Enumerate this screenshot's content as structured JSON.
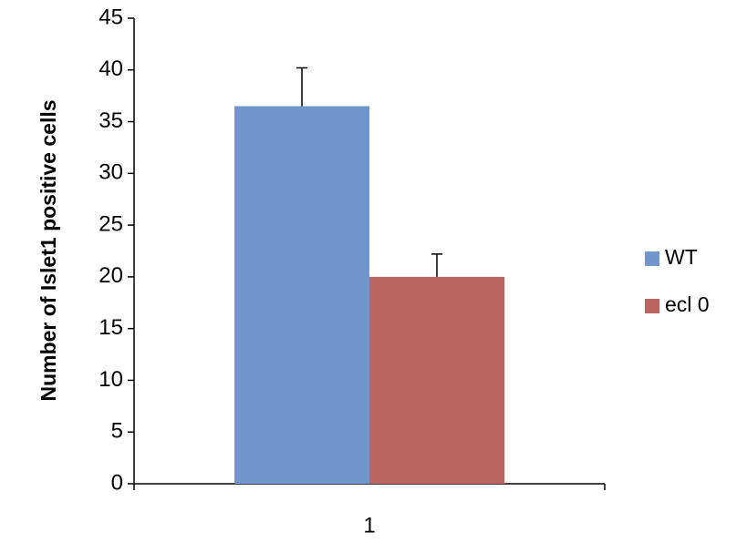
{
  "chart_data": {
    "type": "bar",
    "y_label": "Number of Islet1 positive cells",
    "categories": [
      "1"
    ],
    "series": [
      {
        "name": "WT",
        "color": "#7096cc",
        "values": [
          36.5
        ],
        "errors": [
          3.7
        ]
      },
      {
        "name": "ecl 0",
        "color": "#bb6460",
        "values": [
          20
        ],
        "errors": [
          2.2
        ]
      }
    ],
    "ylim": [
      0,
      45
    ],
    "yticks": [
      0,
      5,
      10,
      15,
      20,
      25,
      30,
      35,
      40,
      45
    ],
    "grid": false,
    "legend": "right"
  }
}
